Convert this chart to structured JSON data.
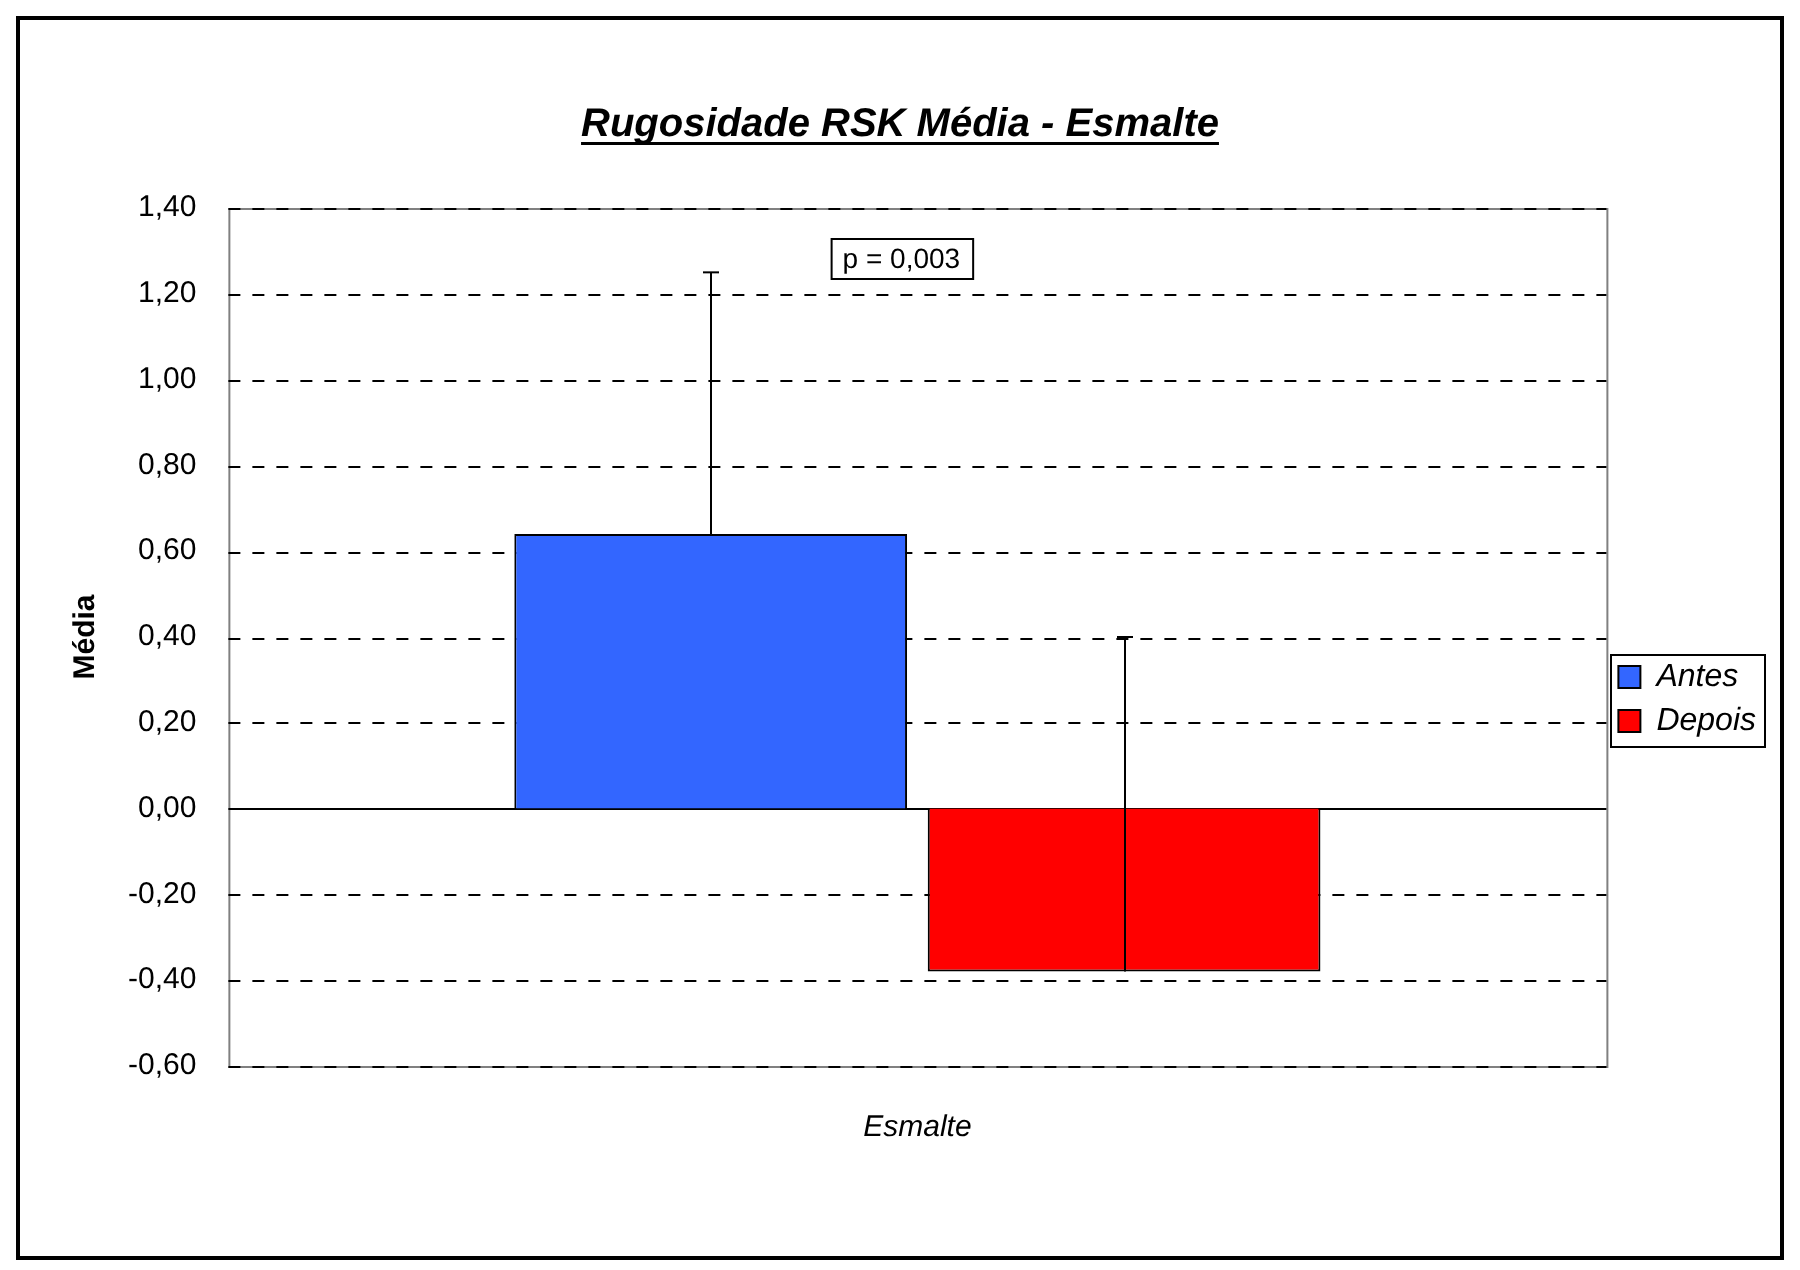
{
  "chart_data": {
    "type": "bar",
    "title": "Rugosidade RSK Média - Esmalte",
    "ylabel": "Média",
    "categories": [
      "Esmalte"
    ],
    "series": [
      {
        "name": "Antes",
        "color": "#3366ff",
        "values": [
          0.64
        ],
        "errors": [
          [
            0.64,
            1.25
          ]
        ]
      },
      {
        "name": "Depois",
        "color": "#ff0000",
        "values": [
          -0.38
        ],
        "errors": [
          [
            -0.38,
            0.4
          ]
        ]
      }
    ],
    "ylim": [
      -0.6,
      1.4
    ],
    "yticks": [
      {
        "value": -0.6,
        "label": "-0,60"
      },
      {
        "value": -0.4,
        "label": "-0,40"
      },
      {
        "value": -0.2,
        "label": "-0,20"
      },
      {
        "value": 0,
        "label": "0,00"
      },
      {
        "value": 0.2,
        "label": "0,20"
      },
      {
        "value": 0.4,
        "label": "0,40"
      },
      {
        "value": 0.6,
        "label": "0,60"
      },
      {
        "value": 0.8,
        "label": "0,80"
      },
      {
        "value": 1,
        "label": "1,00"
      },
      {
        "value": 1.2,
        "label": "1,20"
      },
      {
        "value": 1.4,
        "label": "1,40"
      }
    ],
    "grid": "y",
    "line_style": "dashed",
    "legend": "right",
    "annotations": [
      "p = 0,003"
    ]
  }
}
